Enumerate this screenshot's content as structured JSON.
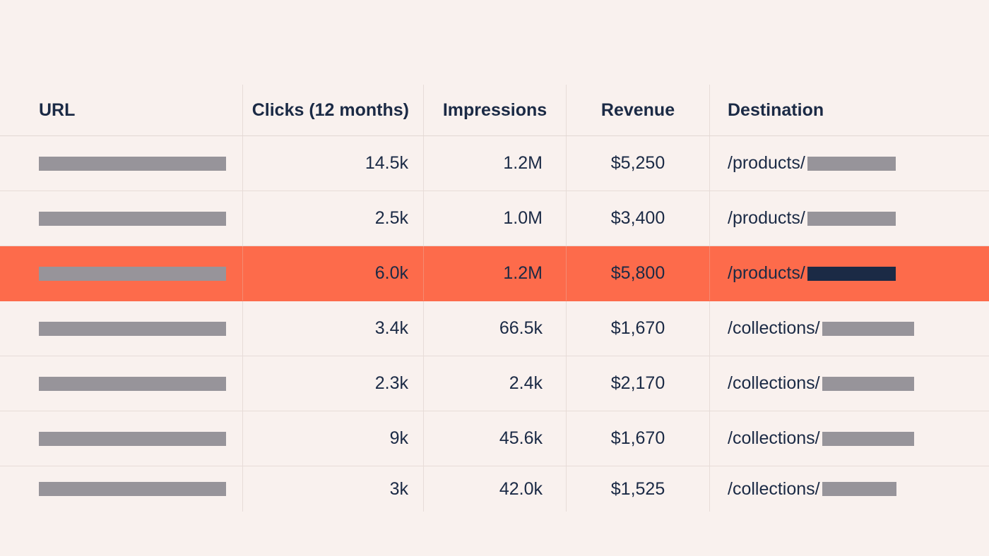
{
  "table": {
    "headers": {
      "url": "URL",
      "clicks": "Clicks (12 months)",
      "impressions": "Impressions",
      "revenue": "Revenue",
      "destination": "Destination"
    },
    "rows": [
      {
        "url": "",
        "clicks": "14.5k",
        "impressions": "1.2M",
        "revenue": "$5,250",
        "destination": "/products/",
        "highlighted": false
      },
      {
        "url": "",
        "clicks": "2.5k",
        "impressions": "1.0M",
        "revenue": "$3,400",
        "destination": "/products/",
        "highlighted": false
      },
      {
        "url": "",
        "clicks": "6.0k",
        "impressions": "1.2M",
        "revenue": "$5,800",
        "destination": "/products/",
        "highlighted": true
      },
      {
        "url": "",
        "clicks": "3.4k",
        "impressions": "66.5k",
        "revenue": "$1,670",
        "destination": "/collections/",
        "highlighted": false
      },
      {
        "url": "",
        "clicks": "2.3k",
        "impressions": "2.4k",
        "revenue": "$2,170",
        "destination": "/collections/",
        "highlighted": false
      },
      {
        "url": "",
        "clicks": "9k",
        "impressions": "45.6k",
        "revenue": "$1,670",
        "destination": "/collections/",
        "highlighted": false
      },
      {
        "url": "",
        "clicks": "3k",
        "impressions": "42.0k",
        "revenue": "$1,525",
        "destination": "/collections/",
        "highlighted": false
      }
    ]
  },
  "colors": {
    "background": "#f9f1ee",
    "highlight": "#fd6b4b",
    "text": "#1b2a45",
    "redaction": "#97949a"
  }
}
